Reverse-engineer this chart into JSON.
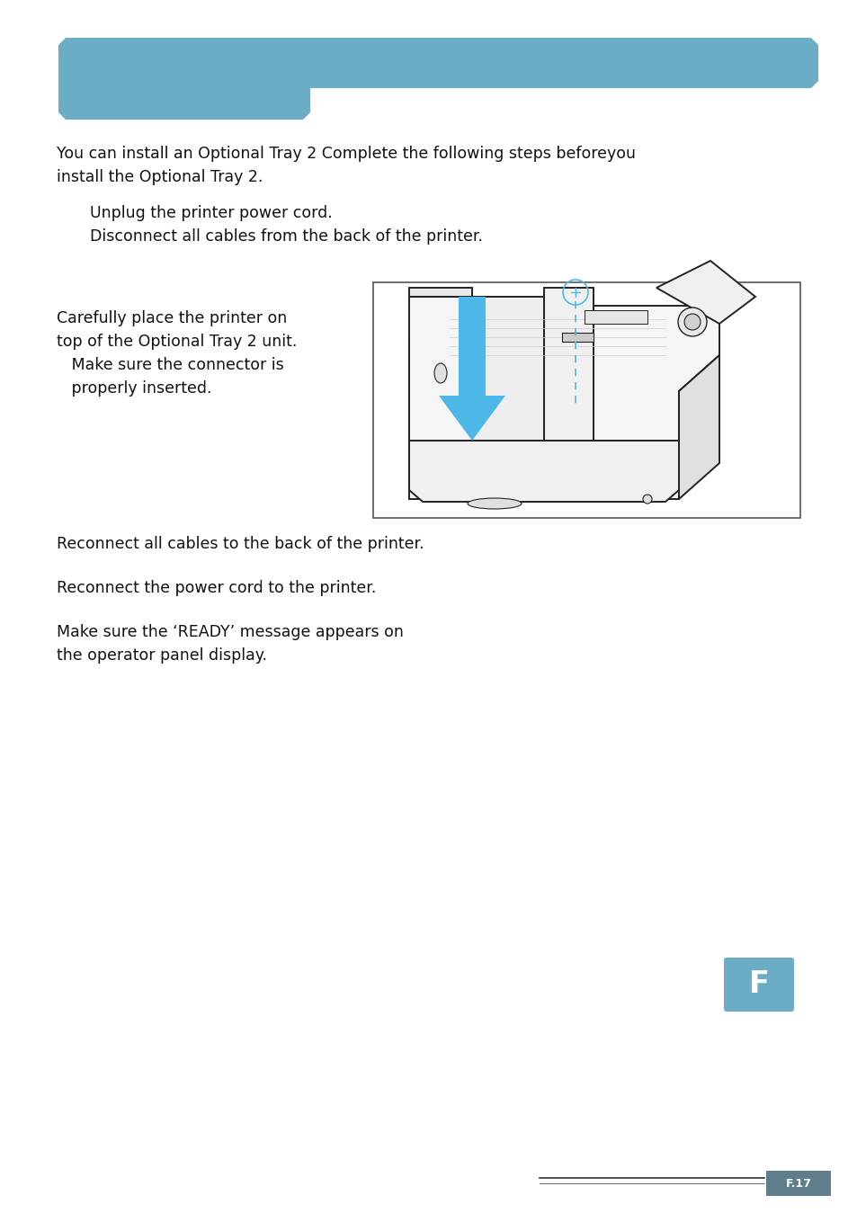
{
  "page_bg": "#ffffff",
  "header_bar_color": "#6aadc5",
  "body_text_color": "#111111",
  "body_font_size": 12.5,
  "intro_text_line1": "You can install an Optional Tray 2 Complete the following steps beforeyou",
  "intro_text_line2": "install the Optional Tray 2.",
  "step1_line1": "Unplug the printer power cord.",
  "step1_line2": "Disconnect all cables from the back of the printer.",
  "step3_line1": "Carefully place the printer on",
  "step3_line2": "top of the Optional Tray 2 unit.",
  "step3_line3": "   Make sure the connector is",
  "step3_line4": "   properly inserted.",
  "step4_text": "Reconnect all cables to the back of the printer.",
  "step5_text": "Reconnect the power cord to the printer.",
  "step6_line1": "Make sure the ‘READY’ message appears on",
  "step6_line2": "the operator panel display.",
  "arrow_color": "#4db8e8",
  "image_border_color": "#555555",
  "footer_box_color": "#5f7d8a",
  "footer_text": "F.17",
  "footer_text_color": "#ffffff",
  "corner_box_color": "#6aadc5",
  "corner_letter": "F",
  "corner_letter_color": "#ffffff"
}
